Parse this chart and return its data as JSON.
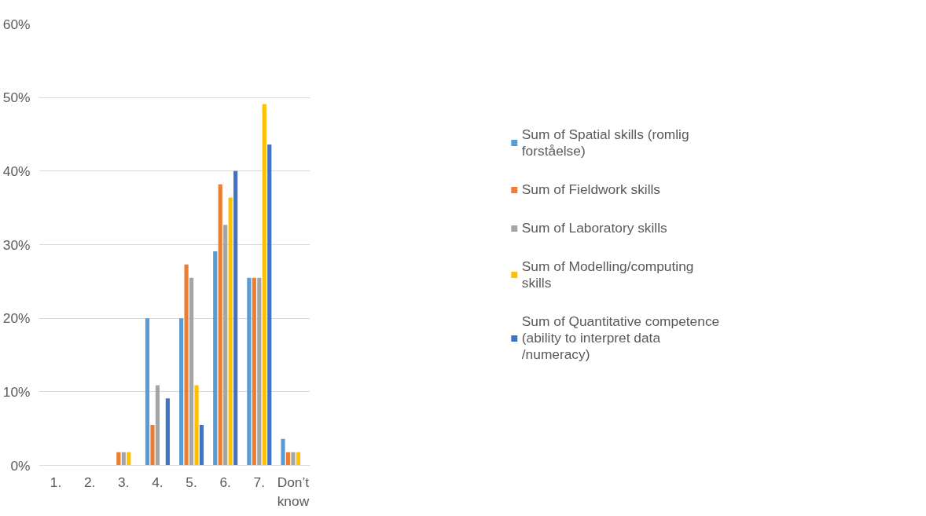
{
  "chart_data": {
    "type": "bar",
    "categories": [
      "1.",
      "2.",
      "3.",
      "4.",
      "5.",
      "6.",
      "7.",
      "Don’t know"
    ],
    "series": [
      {
        "name": "Sum of Spatial skills (romlig forståelse)",
        "color": "#5b9bd5",
        "values": [
          0,
          0,
          0,
          20,
          20,
          29.1,
          25.5,
          3.6
        ]
      },
      {
        "name": "Sum of Fieldwork skills",
        "color": "#ed7d31",
        "values": [
          0,
          0,
          1.8,
          5.5,
          27.3,
          38.2,
          25.5,
          1.8
        ]
      },
      {
        "name": "Sum of Laboratory skills",
        "color": "#a5a5a5",
        "values": [
          0,
          0,
          1.8,
          10.9,
          25.5,
          32.7,
          25.5,
          1.8
        ]
      },
      {
        "name": "Sum of Modelling/computing skills",
        "color": "#ffc000",
        "values": [
          0,
          0,
          1.8,
          0,
          10.9,
          36.4,
          49.1,
          1.8
        ]
      },
      {
        "name": "Sum of Quantitative competence (ability to interpret data /numeracy)",
        "color": "#4472c4",
        "values": [
          0,
          0,
          0,
          9.1,
          5.5,
          40,
          43.6,
          0
        ]
      }
    ],
    "ylim": [
      0,
      60
    ],
    "yticks": [
      {
        "value": 0,
        "label": "0%"
      },
      {
        "value": 10,
        "label": "10%"
      },
      {
        "value": 20,
        "label": "20%"
      },
      {
        "value": 30,
        "label": "30%"
      },
      {
        "value": 40,
        "label": "40%"
      },
      {
        "value": 50,
        "label": "50%"
      },
      {
        "value": 60,
        "label": "60%"
      }
    ],
    "grid": "y",
    "legend": "right"
  }
}
